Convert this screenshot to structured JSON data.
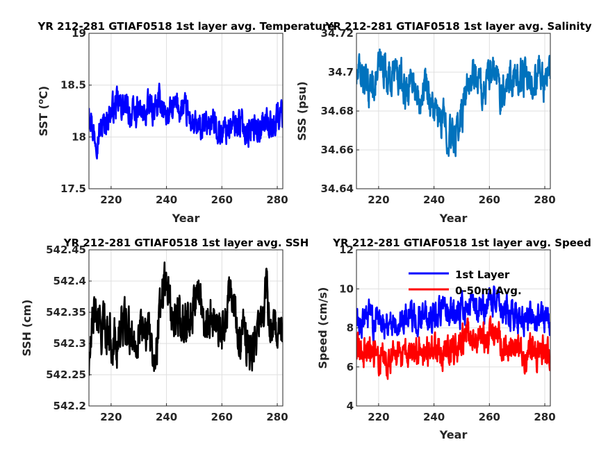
{
  "chart_data": [
    {
      "type": "line",
      "title": "YR 212-281 GTIAF0518 1st layer avg. Temperature",
      "xlabel": "Year",
      "ylabel": "SST (°C)",
      "ylabel_prefix": "SST (",
      "ylabel_sup": "o",
      "ylabel_suffix": "C)",
      "xlim": [
        212,
        282
      ],
      "ylim": [
        17.5,
        19
      ],
      "xticks": [
        "220",
        "240",
        "260",
        "280"
      ],
      "yticks": [
        "17.5",
        "18",
        "18.5",
        "19"
      ],
      "grid": true,
      "series": [
        {
          "color": "#0000ff",
          "x": [
            212,
            214,
            216,
            218,
            220,
            222,
            224,
            226,
            228,
            230,
            232,
            234,
            236,
            238,
            240,
            242,
            244,
            246,
            248,
            250,
            252,
            254,
            256,
            258,
            260,
            262,
            264,
            266,
            268,
            270,
            272,
            274,
            276,
            278,
            280,
            282
          ],
          "y": [
            18.33,
            18.0,
            18.05,
            18.15,
            18.25,
            18.3,
            18.3,
            18.25,
            18.2,
            18.25,
            18.2,
            18.3,
            18.25,
            18.35,
            18.2,
            18.25,
            18.3,
            18.25,
            18.2,
            18.1,
            18.05,
            18.1,
            18.15,
            18.1,
            18.05,
            18.1,
            18.1,
            18.15,
            18.1,
            18.05,
            18.1,
            18.1,
            18.15,
            18.1,
            18.2,
            18.25
          ]
        }
      ]
    },
    {
      "type": "line",
      "title": "YR 212-281 GTIAF0518 1st layer avg. Salinity",
      "xlabel": "Year",
      "ylabel": "SSS (psu)",
      "xlim": [
        212,
        282
      ],
      "ylim": [
        34.64,
        34.72
      ],
      "xticks": [
        "220",
        "240",
        "260",
        "280"
      ],
      "yticks": [
        "34.64",
        "34.66",
        "34.68",
        "34.7",
        "34.72"
      ],
      "grid": true,
      "series": [
        {
          "color": "#0072bd",
          "x": [
            212,
            214,
            216,
            218,
            220,
            222,
            224,
            226,
            228,
            230,
            232,
            234,
            236,
            238,
            240,
            242,
            244,
            246,
            248,
            250,
            252,
            254,
            256,
            258,
            260,
            262,
            264,
            266,
            268,
            270,
            272,
            274,
            276,
            278,
            280,
            282
          ],
          "y": [
            34.697,
            34.7,
            34.69,
            34.695,
            34.7,
            34.705,
            34.695,
            34.7,
            34.695,
            34.69,
            34.7,
            34.685,
            34.695,
            34.69,
            34.68,
            34.675,
            34.675,
            34.665,
            34.668,
            34.68,
            34.69,
            34.7,
            34.695,
            34.69,
            34.695,
            34.7,
            34.69,
            34.695,
            34.7,
            34.695,
            34.7,
            34.69,
            34.695,
            34.7,
            34.695,
            34.7
          ]
        }
      ]
    },
    {
      "type": "line",
      "title": "YR 212-281 GTIAF0518 1st layer avg. SSH",
      "xlabel": "",
      "ylabel": "SSH (cm)",
      "xlim": [
        212,
        282
      ],
      "ylim": [
        542.2,
        542.45
      ],
      "xticks": [
        "220",
        "240",
        "260",
        "280"
      ],
      "yticks": [
        "542.2",
        "542.25",
        "542.3",
        "542.35",
        "542.4",
        "542.45"
      ],
      "grid": true,
      "series": [
        {
          "color": "#000000",
          "x": [
            212,
            214,
            216,
            218,
            220,
            222,
            224,
            226,
            228,
            230,
            232,
            234,
            236,
            238,
            240,
            242,
            244,
            246,
            248,
            250,
            252,
            254,
            256,
            258,
            260,
            262,
            264,
            266,
            268,
            270,
            272,
            274,
            276,
            278,
            280,
            282
          ],
          "y": [
            542.26,
            542.36,
            542.32,
            542.33,
            542.31,
            542.3,
            542.33,
            542.32,
            542.3,
            542.32,
            542.34,
            542.3,
            542.28,
            542.38,
            542.4,
            542.35,
            542.34,
            542.33,
            542.35,
            542.37,
            542.38,
            542.33,
            542.35,
            542.32,
            542.31,
            542.36,
            542.38,
            542.3,
            542.32,
            542.28,
            542.3,
            542.34,
            542.38,
            542.32,
            542.33,
            542.33
          ]
        }
      ]
    },
    {
      "type": "line",
      "title": "YR 212-281 GTIAF0518 1st layer avg. Speed",
      "xlabel": "Year",
      "ylabel": "Speed (cm/s)",
      "xlim": [
        212,
        282
      ],
      "ylim": [
        4,
        12
      ],
      "xticks": [
        "220",
        "240",
        "260",
        "280"
      ],
      "yticks": [
        "4",
        "6",
        "8",
        "10",
        "12"
      ],
      "grid": true,
      "legend": "top-right",
      "series": [
        {
          "name": "1st Layer",
          "color": "#0000ff",
          "x": [
            212,
            214,
            216,
            218,
            220,
            222,
            224,
            226,
            228,
            230,
            232,
            234,
            236,
            238,
            240,
            242,
            244,
            246,
            248,
            250,
            252,
            254,
            256,
            258,
            260,
            262,
            264,
            266,
            268,
            270,
            272,
            274,
            276,
            278,
            280,
            282
          ],
          "y": [
            8.5,
            8.3,
            8.6,
            8.4,
            8.5,
            8.4,
            8.3,
            8.5,
            8.4,
            8.6,
            8.5,
            8.7,
            8.6,
            8.5,
            8.6,
            8.8,
            8.7,
            8.6,
            8.7,
            9.0,
            9.2,
            9.1,
            9.0,
            9.2,
            9.1,
            9.3,
            9.0,
            8.8,
            8.7,
            8.6,
            8.5,
            8.6,
            8.5,
            8.4,
            8.6,
            8.5
          ]
        },
        {
          "name": "0-50m Avg.",
          "color": "#ff0000",
          "x": [
            212,
            214,
            216,
            218,
            220,
            222,
            224,
            226,
            228,
            230,
            232,
            234,
            236,
            238,
            240,
            242,
            244,
            246,
            248,
            250,
            252,
            254,
            256,
            258,
            260,
            262,
            264,
            266,
            268,
            270,
            272,
            274,
            276,
            278,
            280,
            282
          ],
          "y": [
            7.0,
            6.8,
            7.0,
            6.7,
            6.6,
            6.6,
            6.5,
            6.7,
            6.6,
            6.7,
            6.6,
            6.8,
            6.7,
            6.7,
            6.9,
            6.8,
            6.8,
            6.9,
            6.8,
            7.4,
            7.6,
            7.5,
            7.4,
            7.6,
            7.5,
            7.7,
            7.2,
            7.0,
            6.9,
            6.8,
            6.7,
            6.8,
            6.7,
            6.6,
            6.8,
            6.7
          ]
        }
      ]
    }
  ]
}
